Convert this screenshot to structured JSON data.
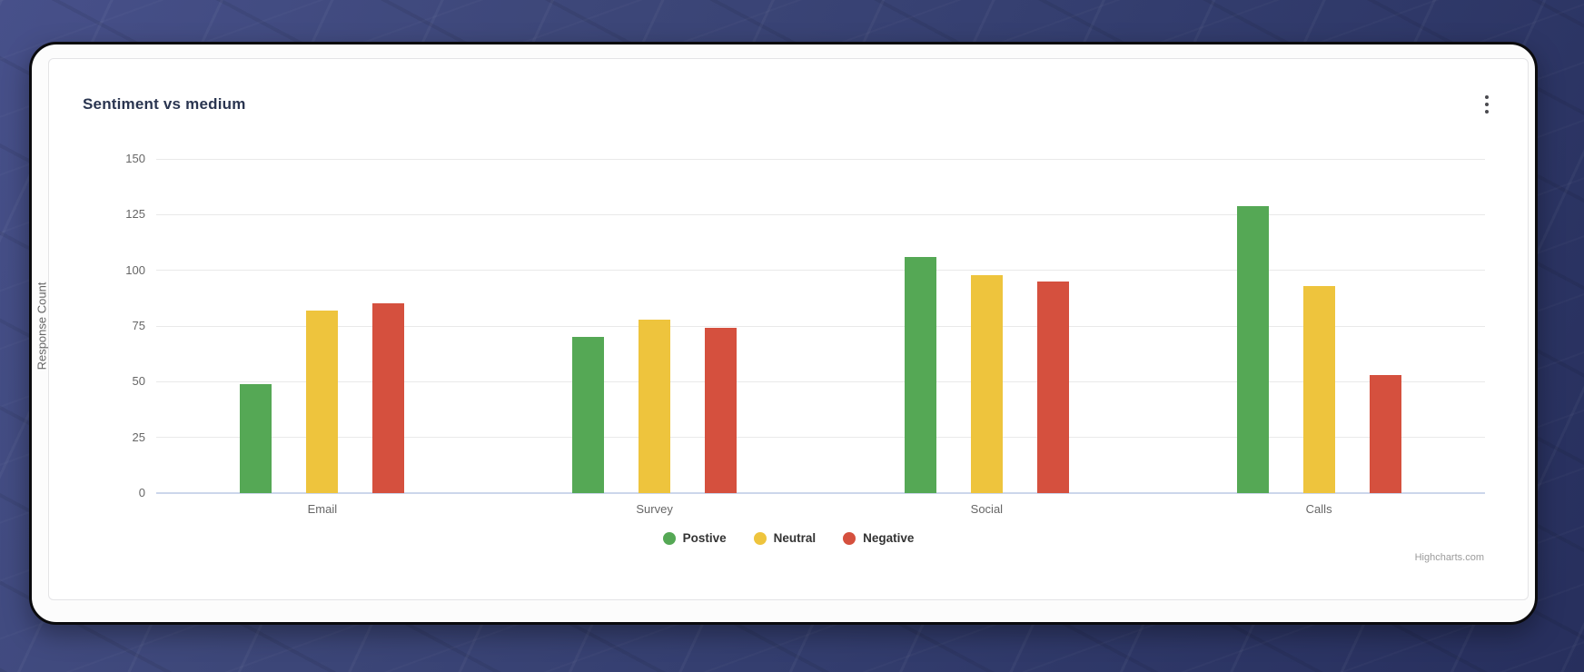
{
  "header": {
    "title": "Sentiment vs medium",
    "menu_icon": "kebab-menu-icon"
  },
  "chart_data": {
    "type": "bar",
    "title": "Sentiment vs medium",
    "categories": [
      "Email",
      "Survey",
      "Social",
      "Calls"
    ],
    "series": [
      {
        "name": "Postive",
        "color": "#55a855",
        "values": [
          49,
          70,
          106,
          129
        ]
      },
      {
        "name": "Neutral",
        "color": "#eec43d",
        "values": [
          82,
          78,
          98,
          93
        ]
      },
      {
        "name": "Negative",
        "color": "#d5503e",
        "values": [
          85,
          74,
          95,
          53
        ]
      }
    ],
    "xlabel": "",
    "ylabel": "Response Count",
    "ylim": [
      0,
      150
    ],
    "yticks": [
      0,
      25,
      50,
      75,
      100,
      125,
      150
    ],
    "grid": true,
    "legend_position": "bottom",
    "baseline_color": "#ccd6eb",
    "gridline_color": "#e9e9e9"
  },
  "credits": {
    "label": "Highcharts.com"
  }
}
